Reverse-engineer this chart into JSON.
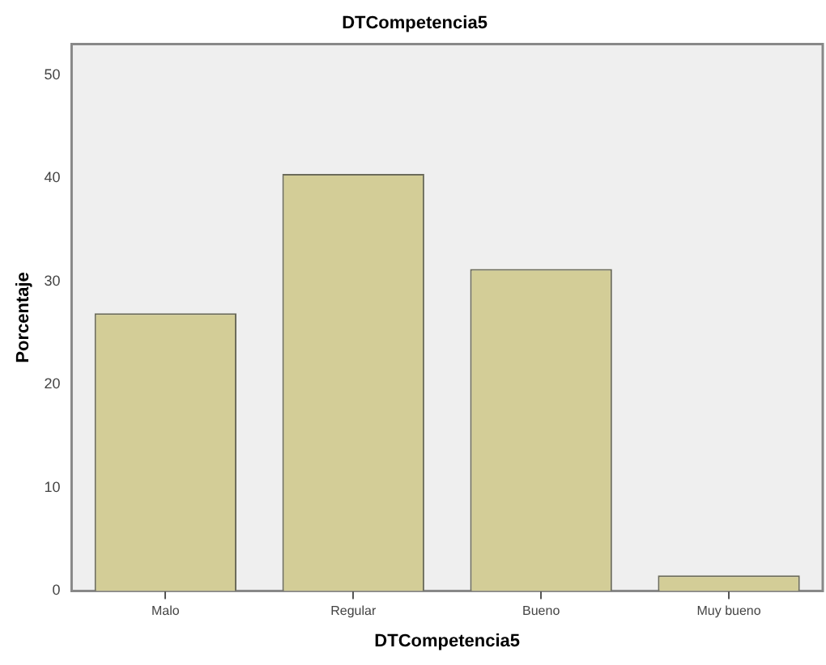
{
  "chart_data": {
    "type": "bar",
    "title": "DTCompetencia5",
    "xlabel": "DTCompetencia5",
    "ylabel": "Porcentaje",
    "categories": [
      "Malo",
      "Regular",
      "Bueno",
      "Muy bueno"
    ],
    "values": [
      26.9,
      40.4,
      31.2,
      1.5
    ],
    "color": "#d3cd97",
    "ylim": [
      0,
      53
    ],
    "yticks": [
      0,
      10,
      20,
      30,
      40,
      50
    ],
    "grid": false,
    "legend": false
  }
}
